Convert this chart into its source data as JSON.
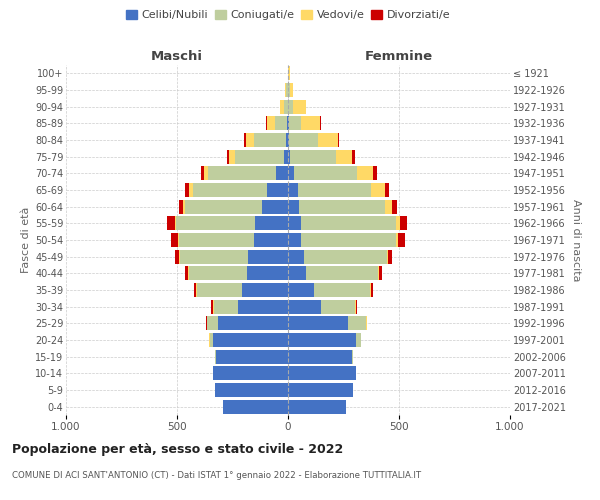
{
  "age_groups": [
    "0-4",
    "5-9",
    "10-14",
    "15-19",
    "20-24",
    "25-29",
    "30-34",
    "35-39",
    "40-44",
    "45-49",
    "50-54",
    "55-59",
    "60-64",
    "65-69",
    "70-74",
    "75-79",
    "80-84",
    "85-89",
    "90-94",
    "95-99",
    "100+"
  ],
  "birth_years": [
    "2017-2021",
    "2012-2016",
    "2007-2011",
    "2002-2006",
    "1997-2001",
    "1992-1996",
    "1987-1991",
    "1982-1986",
    "1977-1981",
    "1972-1976",
    "1967-1971",
    "1962-1966",
    "1957-1961",
    "1952-1956",
    "1947-1951",
    "1942-1946",
    "1937-1941",
    "1932-1936",
    "1927-1931",
    "1922-1926",
    "≤ 1921"
  ],
  "males": {
    "celibi": [
      295,
      330,
      340,
      325,
      340,
      315,
      225,
      205,
      185,
      180,
      155,
      150,
      115,
      95,
      55,
      20,
      8,
      5,
      2,
      2,
      0
    ],
    "coniugati": [
      0,
      0,
      0,
      2,
      12,
      50,
      110,
      205,
      260,
      305,
      335,
      355,
      350,
      335,
      305,
      220,
      145,
      52,
      18,
      5,
      2
    ],
    "vedovi": [
      0,
      0,
      0,
      0,
      2,
      2,
      5,
      5,
      5,
      5,
      5,
      5,
      10,
      18,
      20,
      28,
      38,
      38,
      18,
      5,
      0
    ],
    "divorziati": [
      0,
      0,
      0,
      0,
      0,
      2,
      5,
      10,
      15,
      20,
      32,
      35,
      18,
      15,
      10,
      8,
      5,
      5,
      0,
      0,
      0
    ]
  },
  "females": {
    "nubili": [
      260,
      295,
      305,
      290,
      305,
      270,
      150,
      115,
      80,
      70,
      60,
      60,
      50,
      45,
      28,
      8,
      5,
      5,
      2,
      2,
      0
    ],
    "coniugate": [
      0,
      0,
      2,
      5,
      22,
      82,
      150,
      255,
      325,
      375,
      425,
      425,
      385,
      330,
      285,
      210,
      130,
      52,
      22,
      5,
      2
    ],
    "vedove": [
      0,
      0,
      0,
      0,
      2,
      2,
      5,
      5,
      5,
      5,
      10,
      18,
      32,
      62,
      72,
      72,
      88,
      88,
      58,
      15,
      5
    ],
    "divorziate": [
      0,
      0,
      0,
      0,
      0,
      2,
      5,
      10,
      15,
      20,
      32,
      35,
      25,
      20,
      15,
      10,
      5,
      5,
      0,
      0,
      0
    ]
  },
  "colors": {
    "celibi": "#4472C4",
    "coniugati": "#BFCE9E",
    "vedovi": "#FFD966",
    "divorziati": "#CC0000"
  },
  "title": "Popolazione per età, sesso e stato civile - 2022",
  "subtitle": "COMUNE DI ACI SANT'ANTONIO (CT) - Dati ISTAT 1° gennaio 2022 - Elaborazione TUTTITALIA.IT",
  "xlabel_left": "Maschi",
  "xlabel_right": "Femmine",
  "ylabel_left": "Fasce di età",
  "ylabel_right": "Anni di nascita",
  "xlim": 1000,
  "legend_labels": [
    "Celibi/Nubili",
    "Coniugati/e",
    "Vedovi/e",
    "Divorziati/e"
  ]
}
